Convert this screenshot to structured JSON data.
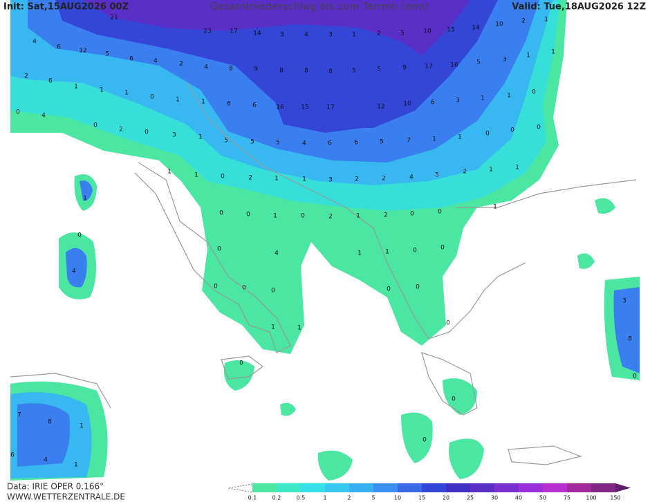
{
  "header": {
    "init": "Init: Sat,15AUG2026 00Z",
    "title": "Gesamtniederschlag bis zum Termin (mm)",
    "valid": "Valid: Tue,18AUG2026 12Z"
  },
  "footer": {
    "data": "Data: IRIE OPER 0.166°",
    "website": "WWW.WETTERZENTRALE.DE"
  },
  "colorbar": {
    "levels": [
      "0.1",
      "0.2",
      "0.5",
      "1",
      "2",
      "5",
      "10",
      "15",
      "20",
      "25",
      "30",
      "40",
      "50",
      "75",
      "100",
      "150"
    ],
    "colors": [
      "#4ae6a2",
      "#3ee6c8",
      "#36e0e8",
      "#38c8f0",
      "#38b0f0",
      "#3a8ff0",
      "#3a6ae6",
      "#3346d8",
      "#4030c4",
      "#5a2fc8",
      "#7a30d0",
      "#9a30d8",
      "#b830d0",
      "#a02a9c",
      "#802884",
      "#602070"
    ]
  },
  "map_labels": [
    "21",
    "23",
    "17",
    "14",
    "3",
    "4",
    "3",
    "1",
    "2",
    "5",
    "10",
    "13",
    "14",
    "10",
    "2",
    "1",
    "4",
    "6",
    "12",
    "5",
    "6",
    "4",
    "2",
    "4",
    "8",
    "9",
    "8",
    "8",
    "8",
    "5",
    "5",
    "9",
    "17",
    "16",
    "5",
    "3",
    "1",
    "1",
    "2",
    "6",
    "1",
    "1",
    "1",
    "0",
    "1",
    "1",
    "6",
    "6",
    "16",
    "15",
    "17",
    "12",
    "10",
    "6",
    "3",
    "1",
    "1",
    "0",
    "0",
    "4",
    "0",
    "2",
    "0",
    "3",
    "1",
    "5",
    "5",
    "5",
    "4",
    "6",
    "6",
    "5",
    "7",
    "1",
    "1",
    "0",
    "0",
    "0",
    "1",
    "1",
    "0",
    "2",
    "1",
    "1",
    "3",
    "2",
    "2",
    "4",
    "5",
    "2",
    "1",
    "1",
    "1",
    "0",
    "0",
    "1",
    "0",
    "2",
    "1",
    "2",
    "0",
    "0",
    "1",
    "0",
    "0",
    "4",
    "1",
    "1",
    "0",
    "0",
    "4",
    "0",
    "0",
    "0",
    "0",
    "0",
    "3",
    "0",
    "1",
    "1",
    "8",
    "0",
    "0",
    "0",
    "7",
    "8",
    "1",
    "0",
    "6",
    "4",
    "1"
  ]
}
